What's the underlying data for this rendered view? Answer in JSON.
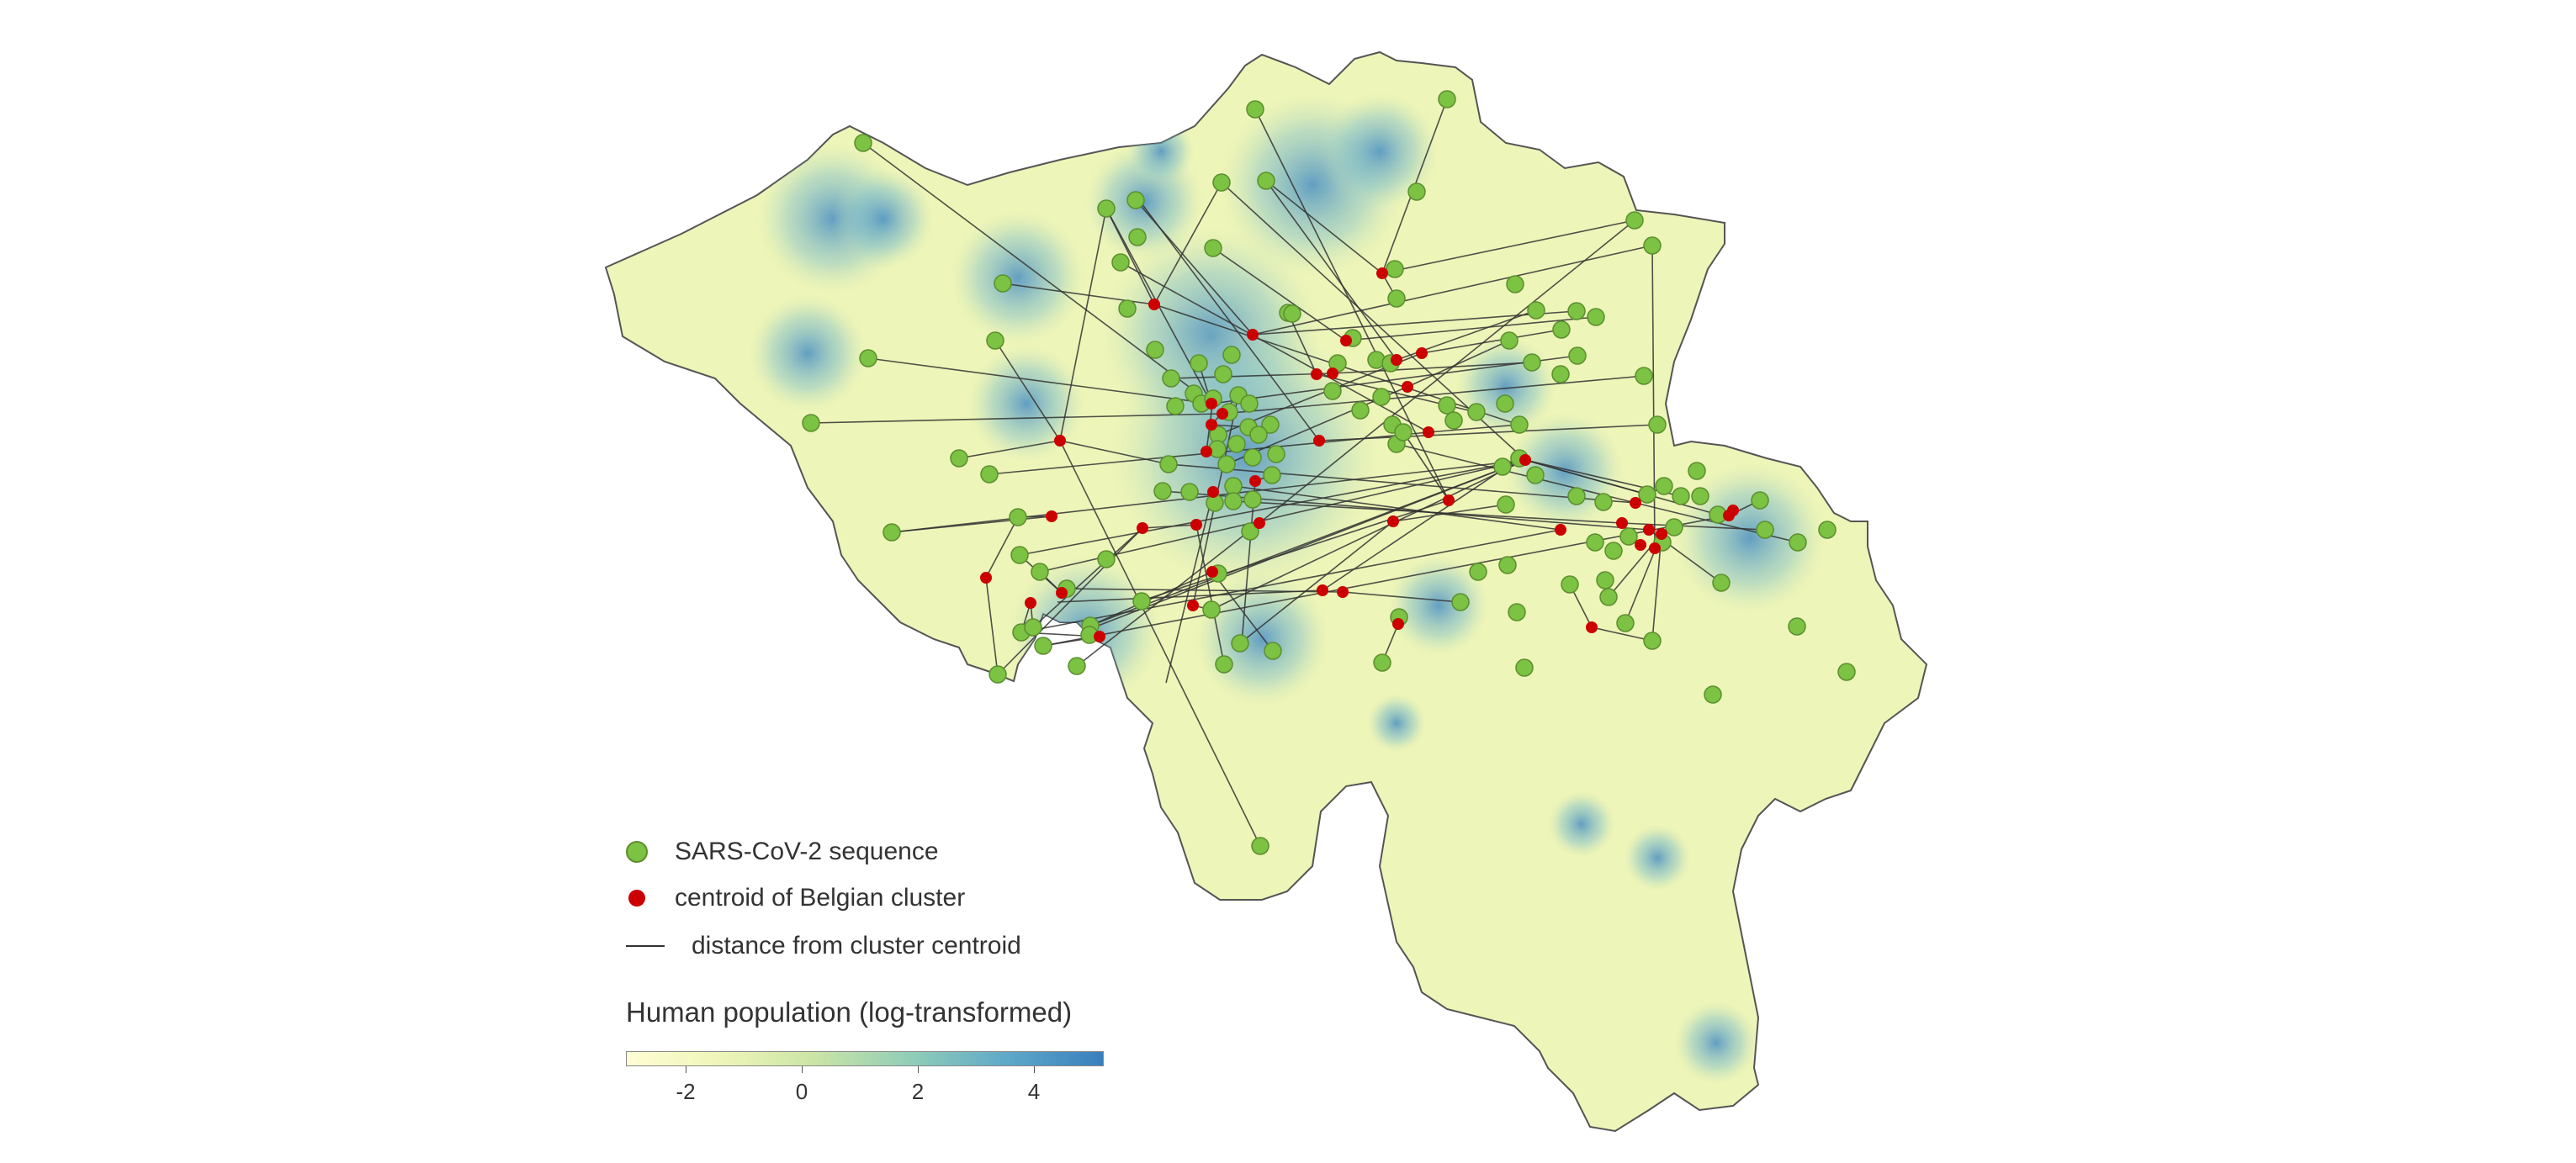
{
  "legend": {
    "sequence_label": "SARS-CoV-2 sequence",
    "centroid_label": "centroid of Belgian cluster",
    "distance_label": "distance from cluster centroid"
  },
  "colorbar": {
    "title": "Human population (log-transformed)",
    "ticks": [
      "-2",
      "0",
      "2",
      "4"
    ],
    "colors": [
      "#fffdd4",
      "#eef5b8",
      "#c9e4a6",
      "#8fcdb8",
      "#5ea8c9",
      "#3a7fbd"
    ]
  },
  "colors": {
    "sequence": "#7cc243",
    "centroid": "#cc0000",
    "line": "#333333",
    "border": "#555555"
  }
}
